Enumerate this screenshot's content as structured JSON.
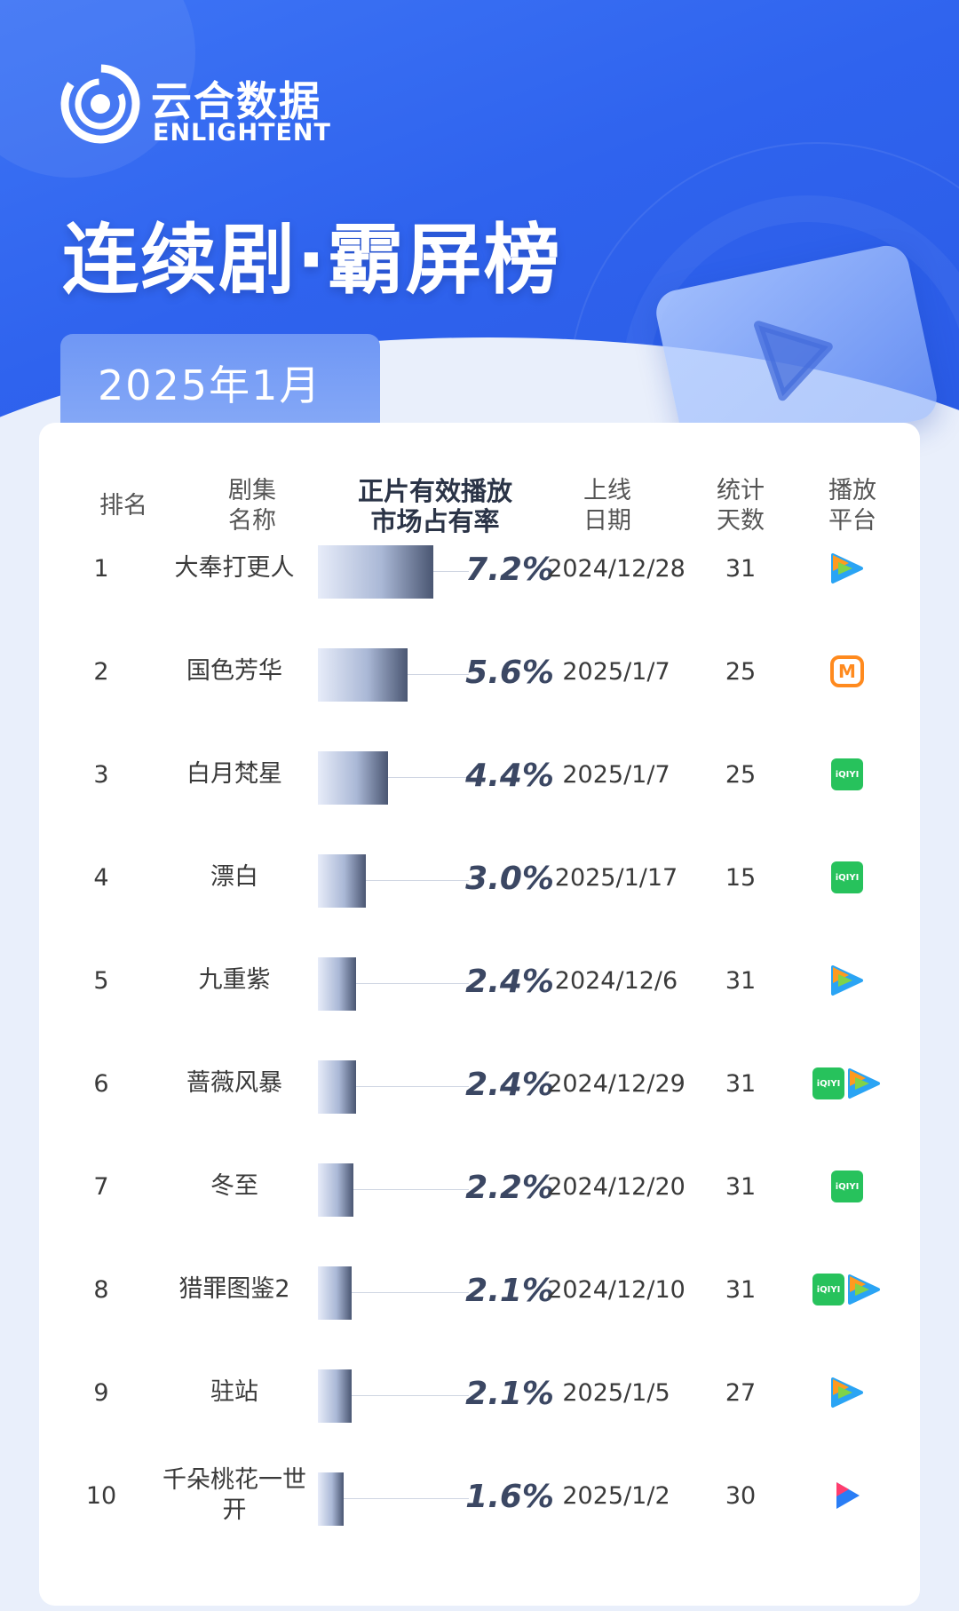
{
  "brand": {
    "name_cn": "云合数据",
    "name_en": "ENLIGHTENT"
  },
  "title": "连续剧·霸屏榜",
  "period": "2025年1月",
  "colors": {
    "hero_blue": "#2f63ee",
    "bar_dark": "#4a5672",
    "percent_text": "#3b4763",
    "iqiyi_green": "#27c25c",
    "mgtv_orange": "#ff8a1e"
  },
  "headers": {
    "rank": [
      "排名"
    ],
    "name": [
      "剧集",
      "名称"
    ],
    "share": [
      "正片有效播放",
      "市场占有率"
    ],
    "date": [
      "上线",
      "日期"
    ],
    "days": [
      "统计",
      "天数"
    ],
    "platform": [
      "播放",
      "平台"
    ]
  },
  "chart_data": {
    "type": "bar",
    "categories": [
      "大奉打更人",
      "国色芳华",
      "白月梵星",
      "漂白",
      "九重紫",
      "蔷薇风暴",
      "冬至",
      "猎罪图鉴2",
      "驻站",
      "千朵桃花一世开"
    ],
    "series": [
      {
        "values": [
          7.2,
          5.6,
          4.4,
          3.0,
          2.4,
          2.4,
          2.2,
          2.1,
          2.1,
          1.6
        ]
      }
    ],
    "value_suffix": "%",
    "ylim": [
      0,
      7.2
    ]
  },
  "rows": [
    {
      "rank": "1",
      "name": "大奉打更人",
      "share_label": "7.2%",
      "date": "2024/12/28",
      "days": "31",
      "platforms": [
        "tencent-video"
      ]
    },
    {
      "rank": "2",
      "name": "国色芳华",
      "share_label": "5.6%",
      "date": "2025/1/7",
      "days": "25",
      "platforms": [
        "mgtv"
      ]
    },
    {
      "rank": "3",
      "name": "白月梵星",
      "share_label": "4.4%",
      "date": "2025/1/7",
      "days": "25",
      "platforms": [
        "iqiyi"
      ]
    },
    {
      "rank": "4",
      "name": "漂白",
      "share_label": "3.0%",
      "date": "2025/1/17",
      "days": "15",
      "platforms": [
        "iqiyi"
      ]
    },
    {
      "rank": "5",
      "name": "九重紫",
      "share_label": "2.4%",
      "date": "2024/12/6",
      "days": "31",
      "platforms": [
        "tencent-video"
      ]
    },
    {
      "rank": "6",
      "name": "蔷薇风暴",
      "share_label": "2.4%",
      "date": "2024/12/29",
      "days": "31",
      "platforms": [
        "iqiyi",
        "tencent-video"
      ]
    },
    {
      "rank": "7",
      "name": "冬至",
      "share_label": "2.2%",
      "date": "2024/12/20",
      "days": "31",
      "platforms": [
        "iqiyi"
      ]
    },
    {
      "rank": "8",
      "name": "猎罪图鉴2",
      "share_label": "2.1%",
      "date": "2024/12/10",
      "days": "31",
      "platforms": [
        "iqiyi",
        "tencent-video"
      ]
    },
    {
      "rank": "9",
      "name": "驻站",
      "share_label": "2.1%",
      "date": "2025/1/5",
      "days": "27",
      "platforms": [
        "tencent-video"
      ]
    },
    {
      "rank": "10",
      "name": "千朵桃花一世开",
      "share_label": "1.6%",
      "date": "2025/1/2",
      "days": "30",
      "platforms": [
        "youku"
      ]
    }
  ]
}
